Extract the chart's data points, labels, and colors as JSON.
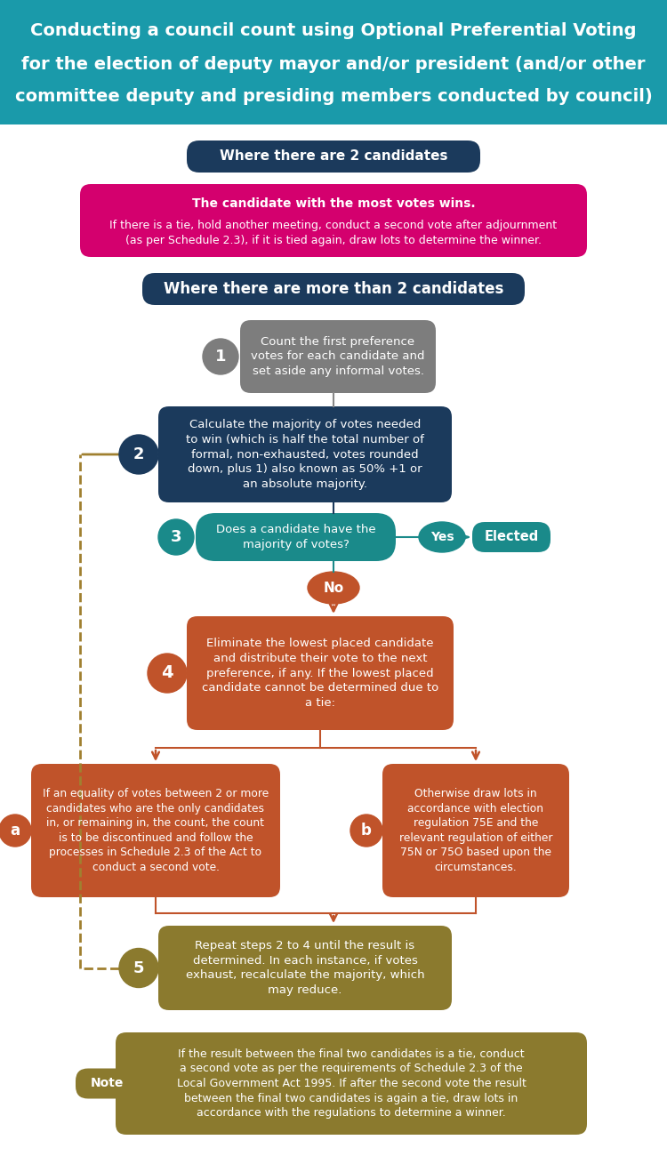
{
  "title_line1": "Conducting a council count using Optional Preferential Voting",
  "title_line2": "for the election of deputy mayor and/or president (and/or other",
  "title_line3": "committee deputy and presiding members conducted by council)",
  "title_bg": "#1a9aaa",
  "title_color": "#ffffff",
  "header2_text": "Where there are 2 candidates",
  "header2_bg": "#1b3a5c",
  "pink_box_bold": "The candidate with the most votes wins.",
  "pink_box_body": "If there is a tie, hold another meeting, conduct a second vote after adjournment\n(as per Schedule 2.3), if it is tied again, draw lots to determine the winner.",
  "pink_bg": "#d4006e",
  "header3_text": "Where there are more than 2 candidates",
  "header3_bg": "#1b3a5c",
  "step1_num": "1",
  "step1_text": "Count the first preference\nvotes for each candidate and\nset aside any informal votes.",
  "step1_bg": "#7d7d7d",
  "step2_num": "2",
  "step2_text": "Calculate the majority of votes needed\nto win (which is half the total number of\nformal, non-exhausted, votes rounded\ndown, plus 1) also known as 50% +1 or\nan absolute majority.",
  "step2_bg": "#1b3a5c",
  "step3_num": "3",
  "step3_text": "Does a candidate have the\nmajority of votes?",
  "step3_bg": "#1a8a8a",
  "yes_text": "Yes",
  "elected_text": "Elected",
  "teal_bg": "#1a8a8a",
  "no_text": "No",
  "no_bg": "#c0532a",
  "step4_num": "4",
  "step4_text": "Eliminate the lowest placed candidate\nand distribute their vote to the next\npreference, if any. If the lowest placed\ncandidate cannot be determined due to\na tie:",
  "step4_bg": "#c0532a",
  "stepa_num": "a",
  "stepa_text": "If an equality of votes between 2 or more\ncandidates who are the only candidates\nin, or remaining in, the count, the count\nis to be discontinued and follow the\nprocesses in Schedule 2.3 of the Act to\nconduct a second vote.",
  "stepa_bg": "#c0532a",
  "stepb_num": "b",
  "stepb_text": "Otherwise draw lots in\naccordance with election\nregulation 75E and the\nrelevant regulation of either\n75N or 75O based upon the\ncircumstances.",
  "stepb_bg": "#c0532a",
  "step5_num": "5",
  "step5_text": "Repeat steps 2 to 4 until the result is\ndetermined. In each instance, if votes\nexhaust, recalculate the majority, which\nmay reduce.",
  "step5_bg": "#8b7a2e",
  "note_label": "Note",
  "note_text_normal1": "If the result between the final two candidates is a tie, conduct\na second vote as per the requirements of Schedule 2.3 of the\n",
  "note_text_italic": "Local Government Act 1995",
  "note_text_normal2": ". If after the second vote the result\nbetween the final two candidates is again a tie, draw lots in\naccordance with the regulations to determine a winner.",
  "note_bg": "#8b7a2e",
  "arrow_teal": "#1a8a8a",
  "arrow_orange": "#c0532a",
  "arrow_brown": "#8b7a2e",
  "dashed_color": "#a08030",
  "white": "#ffffff",
  "bg_color": "#ffffff"
}
